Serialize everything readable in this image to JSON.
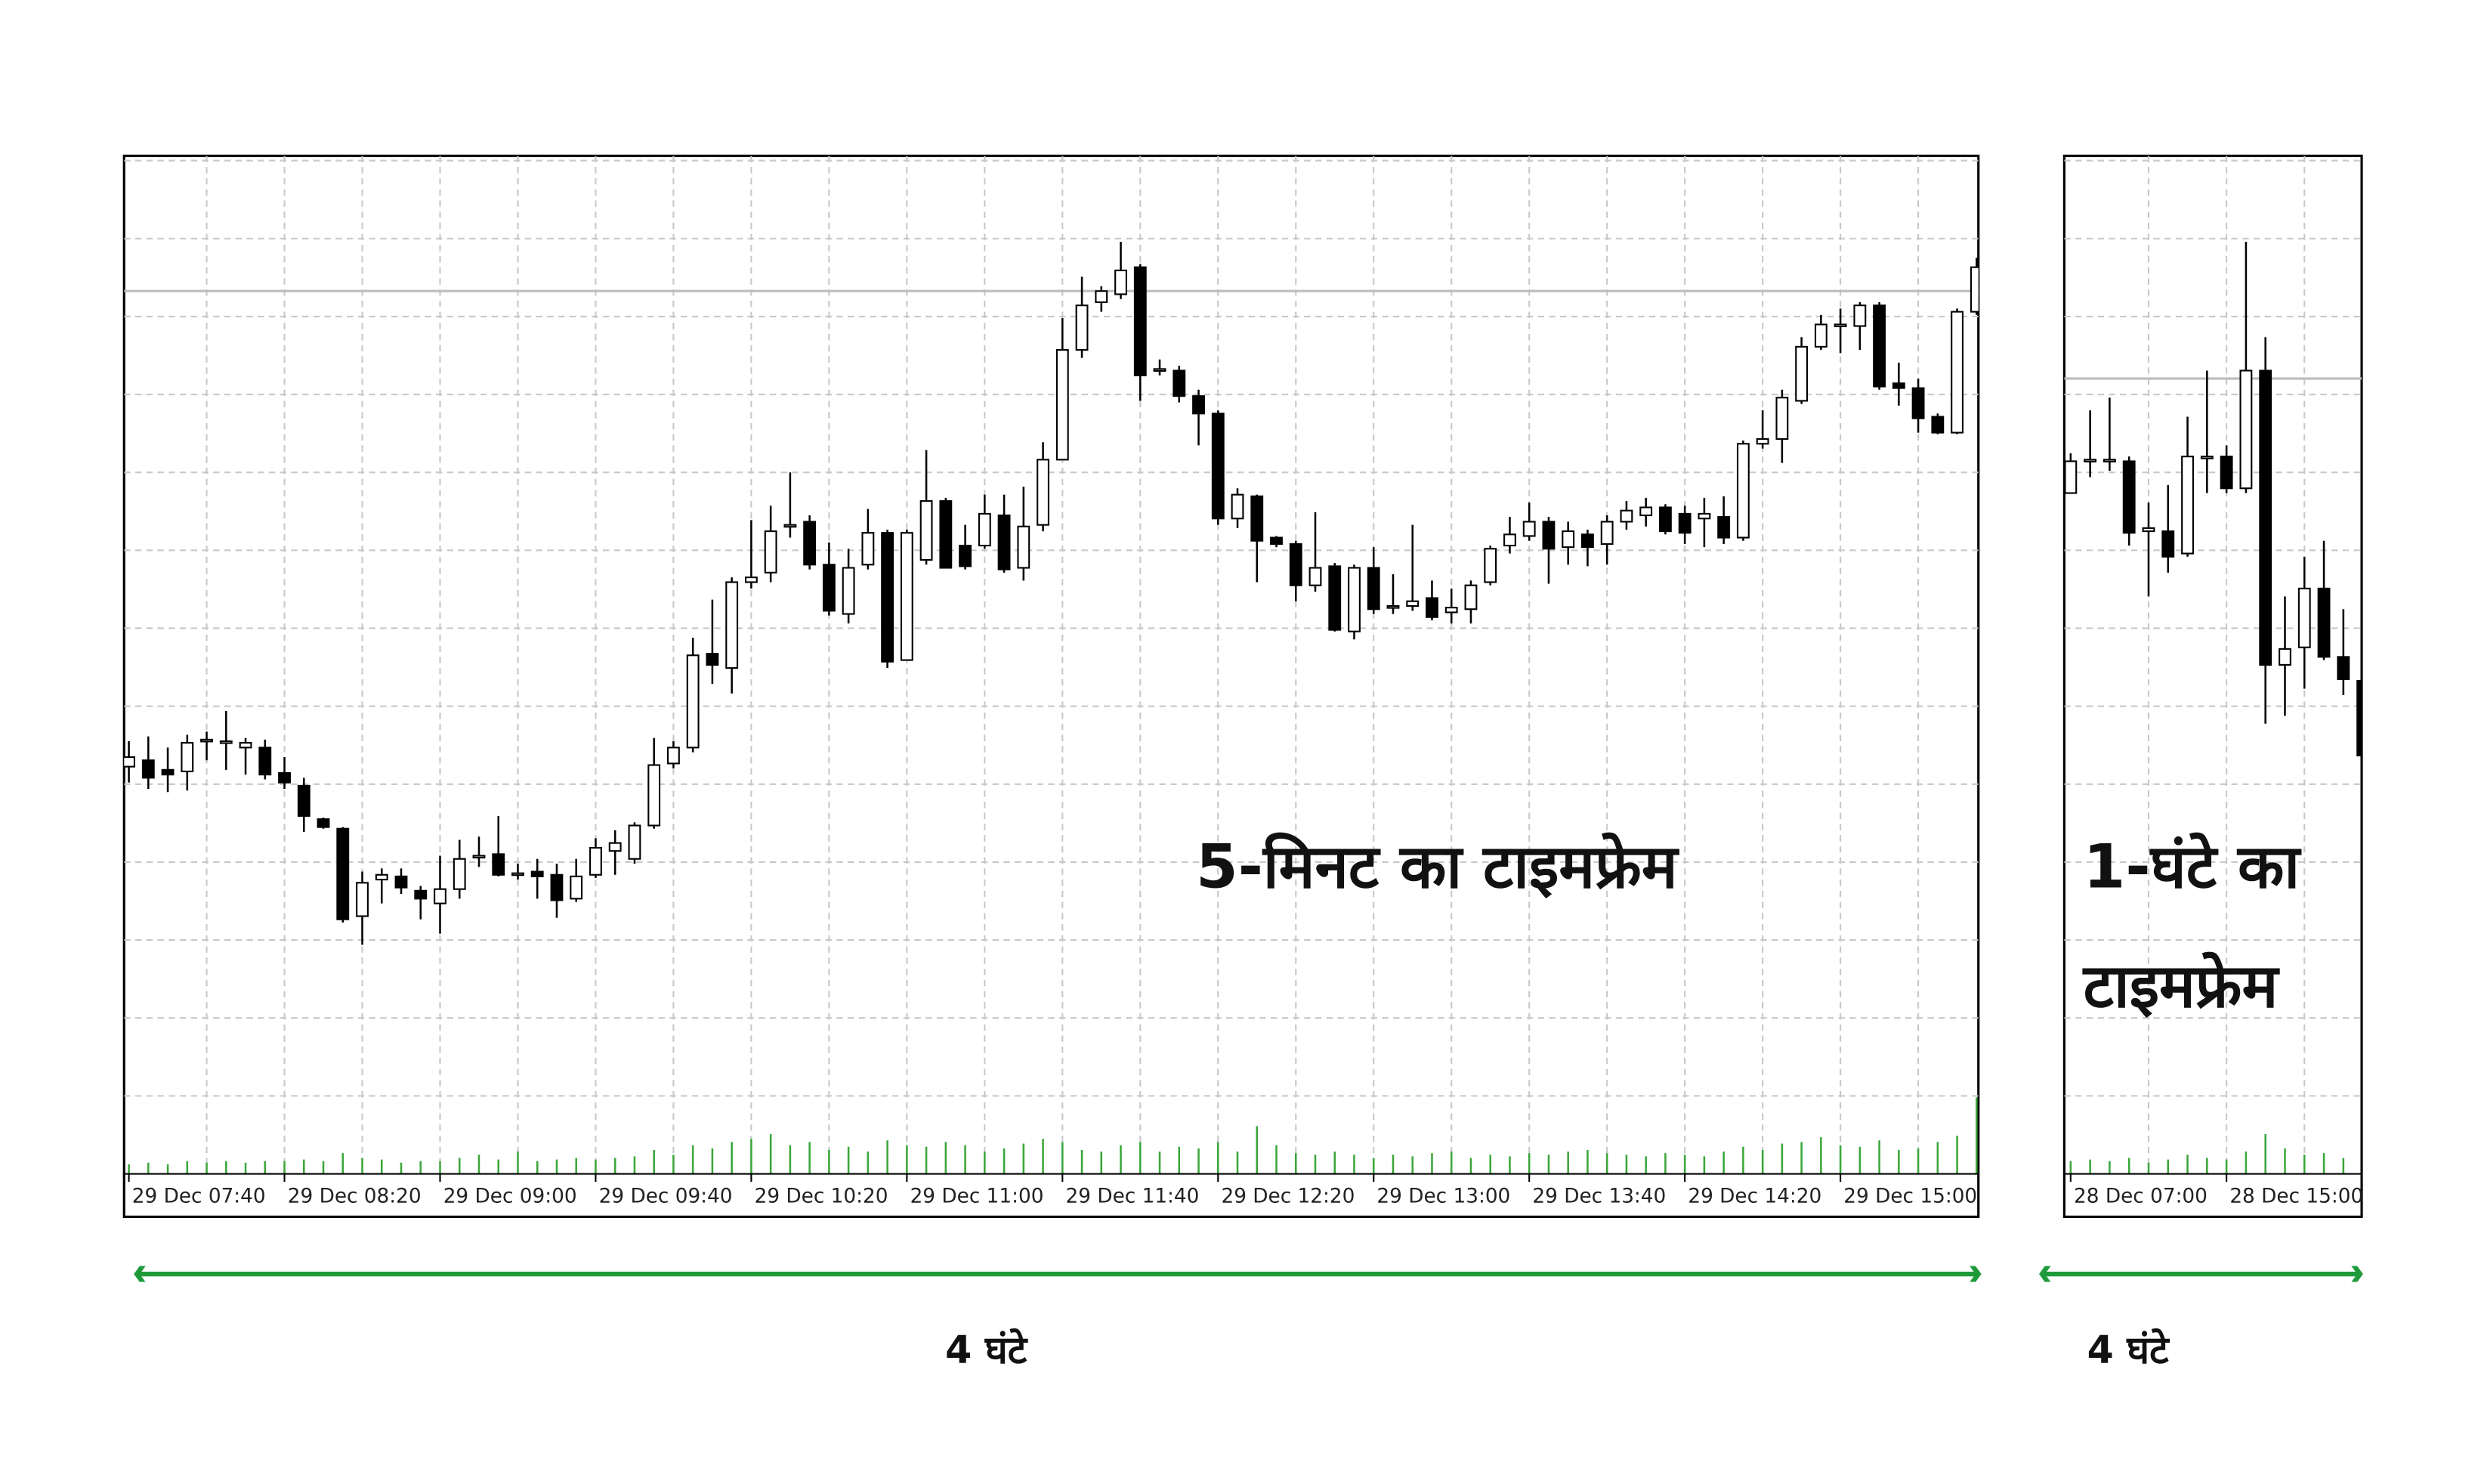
{
  "chart_data": [
    {
      "type": "candlestick",
      "annotation": [
        "5-मिनट का टाइमफ्रेम"
      ],
      "span_label": "4 घंटे",
      "categories": [
        "29 Dec 07:40",
        null,
        null,
        null,
        null,
        null,
        null,
        null,
        "29 Dec 08:20",
        null,
        null,
        null,
        null,
        null,
        null,
        null,
        "29 Dec 09:00",
        null,
        null,
        null,
        null,
        null,
        null,
        null,
        "29 Dec 09:40",
        null,
        null,
        null,
        null,
        null,
        null,
        null,
        "29 Dec 10:20",
        null,
        null,
        null,
        null,
        null,
        null,
        null,
        "29 Dec 11:00",
        null,
        null,
        null,
        null,
        null,
        null,
        null,
        "29 Dec 11:40",
        null,
        null,
        null,
        null,
        null,
        null,
        null,
        "29 Dec 12:20",
        null,
        null,
        null,
        null,
        null,
        null,
        null,
        "29 Dec 13:00",
        null,
        null,
        null,
        null,
        null,
        null,
        null,
        "29 Dec 13:40",
        null,
        null,
        null,
        null,
        null,
        null,
        null,
        "29 Dec 14:20",
        null,
        null,
        null,
        null,
        null,
        null,
        null,
        "29 Dec 15:00",
        null,
        null,
        null,
        null,
        null,
        null,
        null
      ],
      "open": [
        258,
        262,
        256,
        255,
        275,
        274,
        270,
        270,
        254,
        246,
        225,
        219,
        164,
        187,
        189,
        180,
        172,
        181,
        201,
        203,
        191,
        192,
        190,
        175,
        190,
        205,
        200,
        221,
        260,
        270,
        329,
        320,
        374,
        380,
        409,
        412,
        385,
        354,
        385,
        405,
        325,
        388,
        425,
        397,
        397,
        416,
        383,
        410,
        451,
        520,
        550,
        555,
        572,
        508,
        507,
        491,
        480,
        414,
        428,
        402,
        398,
        372,
        384,
        343,
        383,
        359,
        359,
        364,
        355,
        357,
        374,
        397,
        403,
        412,
        396,
        404,
        398,
        412,
        416,
        421,
        417,
        414,
        415,
        402,
        461,
        464,
        488,
        522,
        536,
        535,
        548,
        499,
        496,
        478,
        468,
        544
      ],
      "high": [
        274,
        277,
        270,
        278,
        280,
        293,
        276,
        275,
        264,
        251,
        226,
        220,
        192,
        194,
        194,
        183,
        202,
        212,
        214,
        227,
        197,
        200,
        197,
        200,
        213,
        218,
        223,
        276,
        274,
        339,
        363,
        377,
        413,
        422,
        443,
        416,
        399,
        395,
        420,
        407,
        407,
        457,
        427,
        410,
        429,
        429,
        434,
        462,
        540,
        566,
        560,
        588,
        574,
        514,
        510,
        495,
        482,
        433,
        429,
        403,
        400,
        418,
        386,
        385,
        396,
        379,
        410,
        375,
        370,
        375,
        397,
        415,
        424,
        415,
        412,
        407,
        416,
        425,
        427,
        423,
        422,
        427,
        428,
        463,
        482,
        495,
        528,
        542,
        546,
        550,
        550,
        512,
        502,
        480,
        546,
        578
      ],
      "low": [
        248,
        244,
        242,
        243,
        262,
        256,
        253,
        250,
        244,
        217,
        219,
        160,
        146,
        172,
        178,
        162,
        153,
        175,
        195,
        189,
        187,
        175,
        163,
        173,
        188,
        190,
        197,
        219,
        257,
        267,
        310,
        304,
        370,
        374,
        402,
        382,
        353,
        348,
        382,
        320,
        325,
        385,
        383,
        382,
        395,
        380,
        375,
        406,
        451,
        515,
        544,
        552,
        488,
        504,
        487,
        460,
        410,
        408,
        374,
        396,
        362,
        368,
        343,
        338,
        354,
        354,
        356,
        350,
        348,
        348,
        372,
        392,
        400,
        373,
        385,
        384,
        385,
        407,
        409,
        404,
        398,
        396,
        398,
        400,
        458,
        449,
        486,
        520,
        518,
        520,
        495,
        485,
        468,
        467,
        467,
        542
      ],
      "close": [
        264,
        251,
        253,
        273,
        275,
        274,
        273,
        253,
        248,
        227,
        220,
        162,
        185,
        190,
        182,
        175,
        181,
        200,
        202,
        190,
        191,
        189,
        174,
        189,
        207,
        210,
        221,
        259,
        270,
        328,
        322,
        374,
        377,
        406,
        410,
        385,
        356,
        383,
        405,
        324,
        405,
        425,
        383,
        384,
        417,
        382,
        409,
        451,
        520,
        548,
        557,
        570,
        504,
        508,
        491,
        480,
        414,
        429,
        400,
        398,
        372,
        383,
        344,
        383,
        357,
        359,
        362,
        352,
        358,
        372,
        395,
        404,
        412,
        395,
        406,
        396,
        412,
        419,
        421,
        406,
        405,
        417,
        402,
        461,
        464,
        490,
        522,
        536,
        536,
        548,
        497,
        496,
        477,
        468,
        544,
        572
      ],
      "volume": [
        6,
        7,
        6,
        8,
        7,
        8,
        7,
        8,
        8,
        9,
        8,
        13,
        10,
        9,
        7,
        8,
        8,
        10,
        12,
        9,
        14,
        8,
        9,
        10,
        9,
        10,
        11,
        15,
        12,
        18,
        16,
        20,
        22,
        25,
        18,
        20,
        15,
        17,
        14,
        21,
        18,
        17,
        20,
        18,
        14,
        16,
        19,
        22,
        20,
        15,
        14,
        18,
        20,
        14,
        17,
        16,
        20,
        14,
        30,
        18,
        13,
        12,
        14,
        12,
        10,
        12,
        11,
        13,
        14,
        10,
        12,
        11,
        13,
        12,
        14,
        15,
        13,
        12,
        11,
        13,
        12,
        11,
        14,
        17,
        15,
        19,
        20,
        23,
        18,
        17,
        21,
        15,
        16,
        20,
        24,
        48
      ],
      "ylim": [
        2,
        642
      ],
      "hline": 557,
      "grid": true,
      "up_color": "#ffffff",
      "down_color": "#000000",
      "volume_color": "#3aa63a"
    },
    {
      "type": "candlestick",
      "annotation": [
        "1-घंटे का",
        "टाइमफ्रेम"
      ],
      "span_label": "4 घंटे",
      "categories": [
        "28 Dec 07:00",
        null,
        null,
        null,
        null,
        null,
        null,
        null,
        "28 Dec 15:00",
        null,
        null,
        null,
        null,
        null,
        null,
        null
      ],
      "open": [
        430,
        451,
        451,
        450,
        406,
        406,
        392,
        453,
        453,
        433,
        507,
        322,
        333,
        370,
        327,
        312
      ],
      "high": [
        455,
        482,
        490,
        453,
        424,
        435,
        478,
        507,
        460,
        588,
        528,
        365,
        390,
        400,
        357,
        315
      ],
      "low": [
        430,
        440,
        444,
        397,
        365,
        380,
        390,
        430,
        430,
        430,
        285,
        290,
        307,
        325,
        303,
        262
      ],
      "close": [
        450,
        451,
        451,
        405,
        408,
        390,
        453,
        453,
        433,
        507,
        322,
        332,
        370,
        327,
        313,
        265
      ],
      "volume": [
        8,
        9,
        8,
        10,
        7,
        9,
        12,
        10,
        9,
        14,
        25,
        16,
        12,
        13,
        10,
        9
      ],
      "ylim": [
        2,
        642
      ],
      "hline": 502,
      "grid": true,
      "up_color": "#ffffff",
      "down_color": "#000000",
      "volume_color": "#3aa63a"
    }
  ]
}
